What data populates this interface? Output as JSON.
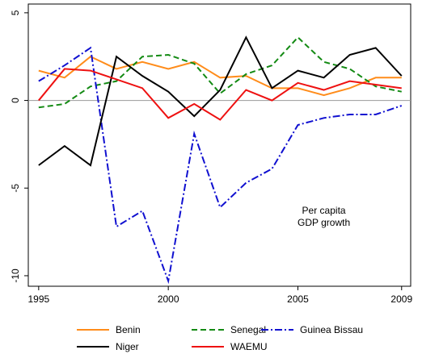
{
  "chart_data": {
    "type": "line",
    "x": [
      1995,
      1996,
      1997,
      1998,
      1999,
      2000,
      2001,
      2002,
      2003,
      2004,
      2005,
      2006,
      2007,
      2008,
      2009
    ],
    "series": [
      {
        "name": "Benin",
        "color": "#ff8c1a",
        "dash": "solid",
        "values": [
          1.7,
          1.3,
          2.5,
          1.8,
          2.2,
          1.8,
          2.2,
          1.3,
          1.4,
          0.7,
          0.7,
          0.3,
          0.7,
          1.3,
          1.3
        ]
      },
      {
        "name": "Senegal",
        "color": "#138a13",
        "dash": "dashed",
        "values": [
          -0.4,
          -0.2,
          0.8,
          1.1,
          2.5,
          2.6,
          2.1,
          0.4,
          1.5,
          2.0,
          3.6,
          2.2,
          1.8,
          0.8,
          0.5
        ]
      },
      {
        "name": "Guinea Bissau",
        "color": "#1010d0",
        "dash": "dashdot",
        "values": [
          1.1,
          2.0,
          3.0,
          -7.2,
          -6.3,
          -10.3,
          -1.9,
          -6.1,
          -4.7,
          -3.9,
          -1.4,
          -1.0,
          -0.8,
          -0.8,
          -0.3
        ]
      },
      {
        "name": "Niger",
        "color": "#000000",
        "dash": "solid",
        "values": [
          -3.7,
          -2.6,
          -3.7,
          2.5,
          1.4,
          0.5,
          -0.9,
          0.6,
          3.6,
          0.7,
          1.7,
          1.3,
          2.6,
          3.0,
          1.4
        ]
      },
      {
        "name": "WAEMU",
        "color": "#ee1111",
        "dash": "solid",
        "values": [
          0.0,
          1.8,
          1.7,
          1.2,
          0.7,
          -1.0,
          -0.2,
          -1.1,
          0.6,
          0.0,
          1.0,
          0.6,
          1.1,
          0.9,
          0.7
        ]
      }
    ],
    "xlim": [
      1994.6,
      2009.35
    ],
    "xticks": [
      1995,
      2000,
      2005,
      2009
    ],
    "ylim": [
      -10.6,
      5.5
    ],
    "yticks": [
      -10,
      -5,
      0,
      5
    ],
    "reference_line": 0,
    "annotation": [
      "Per capita",
      "GDP growth"
    ],
    "grid": false
  }
}
